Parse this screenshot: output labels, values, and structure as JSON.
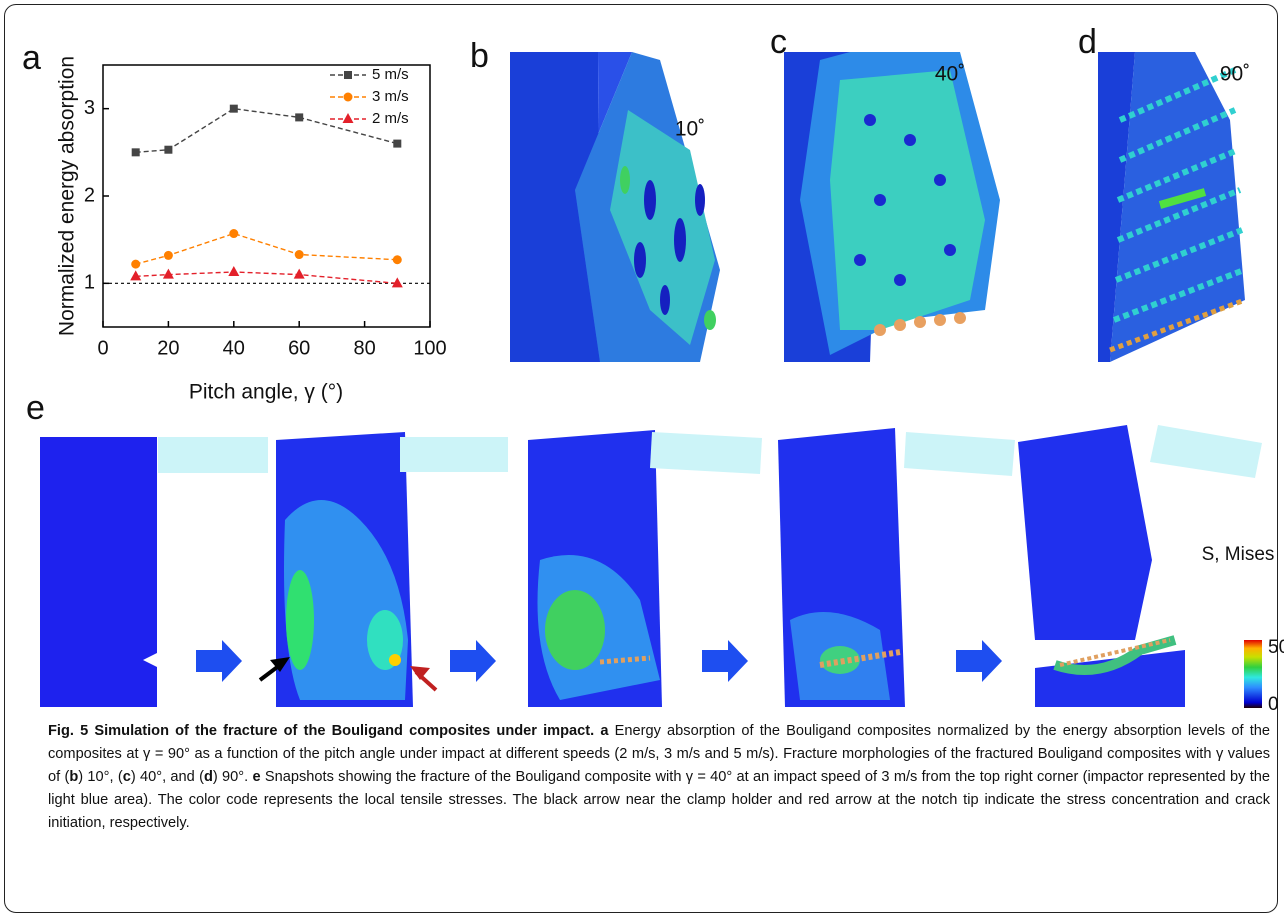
{
  "chart_data": {
    "type": "line",
    "ylabel": "Normalized energy absorption",
    "xlabel": "Pitch angle, γ (°)",
    "x": [
      10,
      20,
      40,
      60,
      90
    ],
    "series": [
      {
        "name": "5 m/s",
        "color": "#454545",
        "marker": "square",
        "values": [
          2.5,
          2.53,
          3.0,
          2.9,
          2.6
        ]
      },
      {
        "name": "3 m/s",
        "color": "#ff8000",
        "marker": "circle",
        "values": [
          1.22,
          1.32,
          1.57,
          1.33,
          1.27
        ]
      },
      {
        "name": "2 m/s",
        "color": "#e3202a",
        "marker": "triangle",
        "values": [
          1.08,
          1.1,
          1.13,
          1.1,
          1.0
        ]
      }
    ],
    "xlim": [
      0,
      100
    ],
    "xticks": [
      0,
      20,
      40,
      60,
      80,
      100
    ],
    "ylim": [
      0.5,
      3.5
    ],
    "yticks": [
      1,
      2,
      3
    ],
    "reference_line": 1,
    "legend": "upper right"
  },
  "panel_labels": [
    "a",
    "b",
    "c",
    "d",
    "e"
  ],
  "angle_labels": [
    "10˚",
    "40˚",
    "90˚"
  ],
  "colorbar": {
    "title": "S, Mises",
    "max": 50,
    "min": 0
  },
  "caption": [
    {
      "text": "Fig. 5 Simulation of the fracture of the Bouligand composites under impact.",
      "bold": true
    },
    {
      "text": " a",
      "bold": true
    },
    {
      "text": " Energy absorption of the Bouligand composites normalized by the energy absorption levels of the composites at γ = 90° as a function of the pitch angle under impact at different speeds (2 m/s, 3 m/s and 5 m/s). Fracture morphologies of the fractured Bouligand composites with γ values of (",
      "bold": false
    },
    {
      "text": "b",
      "bold": true
    },
    {
      "text": ") 10°, (",
      "bold": false
    },
    {
      "text": "c",
      "bold": true
    },
    {
      "text": ") 40°, and (",
      "bold": false
    },
    {
      "text": "d",
      "bold": true
    },
    {
      "text": ") 90°. ",
      "bold": false
    },
    {
      "text": "e",
      "bold": true
    },
    {
      "text": " Snapshots showing the fracture of the Bouligand composite with γ = 40° at an impact speed of 3 m/s from the top right corner (impactor represented by the light blue area). The color code represents the local tensile stresses. The black arrow near the clamp holder and red arrow at the notch tip indicate the stress concentration and crack initiation, respectively.",
      "bold": false
    }
  ]
}
